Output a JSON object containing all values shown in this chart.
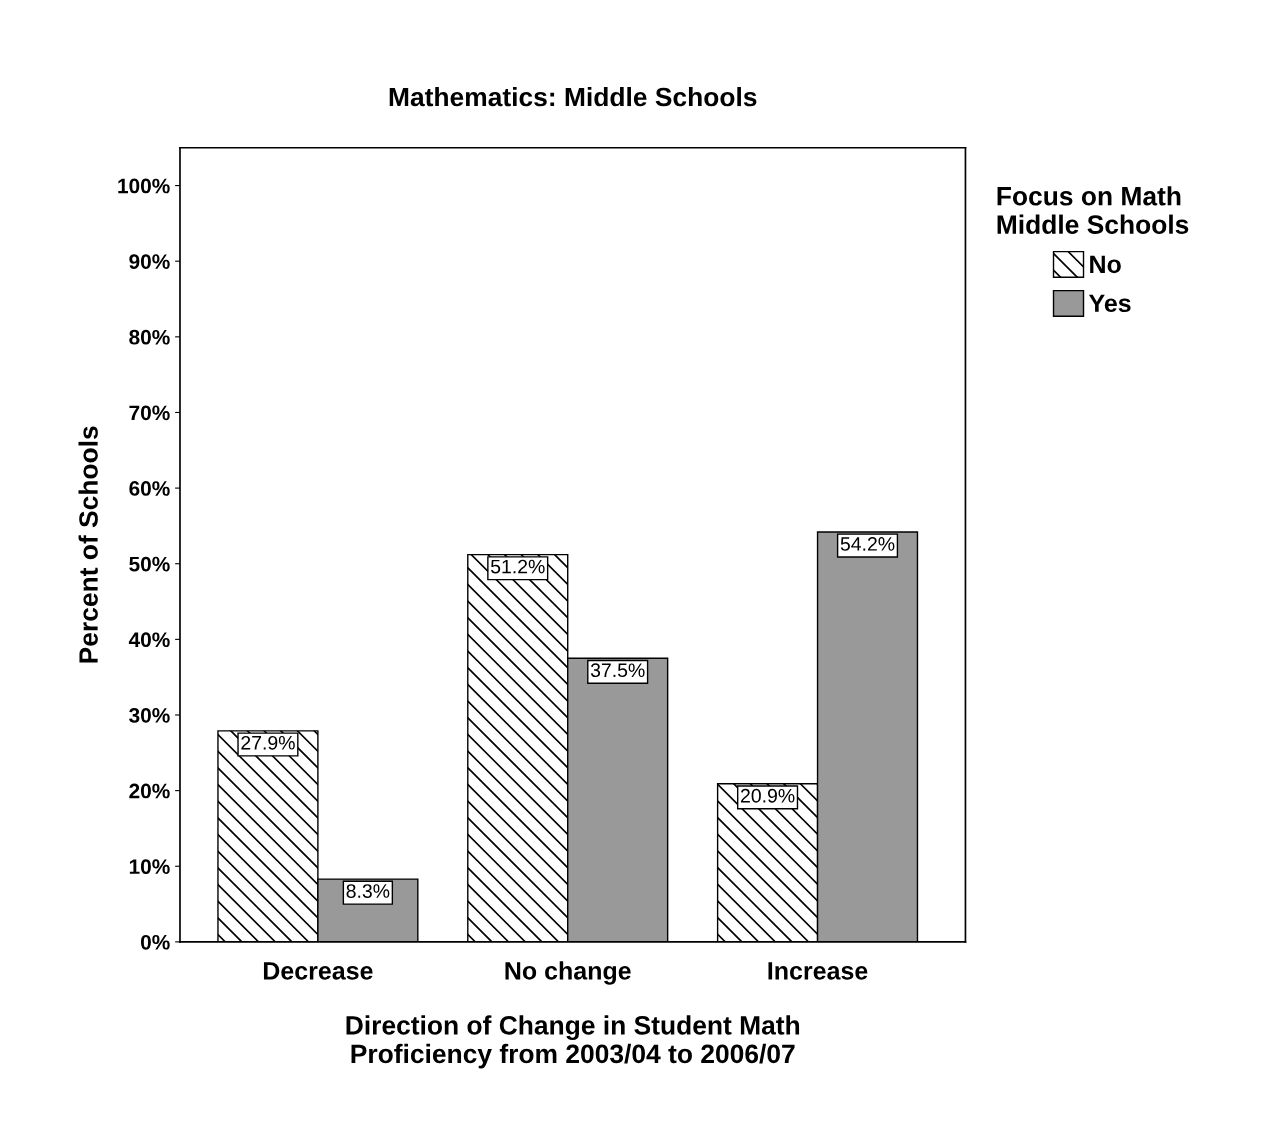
{
  "chart_data": {
    "type": "bar",
    "title": "Mathematics: Middle Schools",
    "xlabel": "Direction of Change in Student Math\nProficiency from 2003/04 to 2006/07",
    "ylabel": "Percent of Schools",
    "legend_title": "Focus on Math\nMiddle Schools",
    "categories": [
      "Decrease",
      "No change",
      "Increase"
    ],
    "series": [
      {
        "name": "No",
        "color": "#000000",
        "values": [
          27.9,
          51.2,
          20.9
        ],
        "value_labels": [
          "27.9%",
          "51.2%",
          "20.9%"
        ]
      },
      {
        "name": "Yes",
        "color": "#999999",
        "values": [
          8.3,
          37.5,
          54.2
        ],
        "value_labels": [
          "8.3%",
          "37.5%",
          "54.2%"
        ]
      }
    ],
    "ylim": [
      0,
      105
    ],
    "yticks": [
      {
        "value": 0,
        "label": "0%"
      },
      {
        "value": 10,
        "label": "10%"
      },
      {
        "value": 20,
        "label": "20%"
      },
      {
        "value": 30,
        "label": "30%"
      },
      {
        "value": 40,
        "label": "40%"
      },
      {
        "value": 50,
        "label": "50%"
      },
      {
        "value": 60,
        "label": "60%"
      },
      {
        "value": 70,
        "label": "70%"
      },
      {
        "value": 80,
        "label": "80%"
      },
      {
        "value": 90,
        "label": "90%"
      },
      {
        "value": 100,
        "label": "100%"
      }
    ],
    "grid": false,
    "legend": "top right"
  }
}
